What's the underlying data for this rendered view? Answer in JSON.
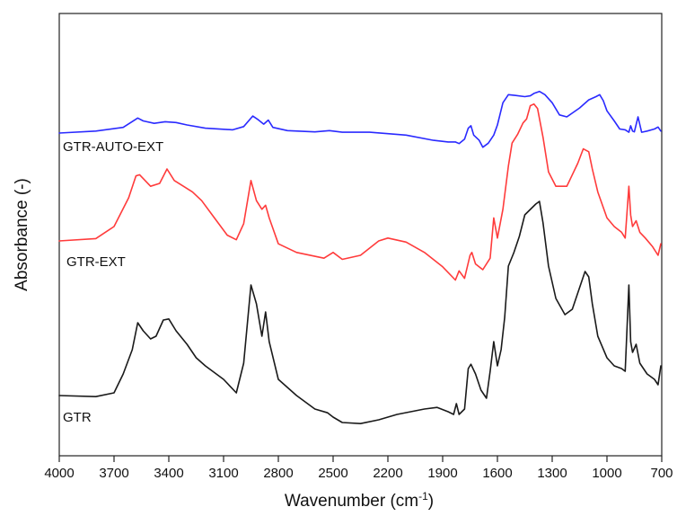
{
  "chart_data": {
    "type": "line",
    "title": "",
    "xlabel": "Wavenumber (cm",
    "xlabel_superscript": "-1",
    "xlabel_suffix": ")",
    "ylabel": "Absorbance (-)",
    "xlim": [
      4000,
      700
    ],
    "x_reversed": true,
    "y_ticks_shown": false,
    "grid": false,
    "legend": "inline labels at left",
    "x_ticks": [
      "4000",
      "3700",
      "3400",
      "3100",
      "2800",
      "2500",
      "2200",
      "1900",
      "1600",
      "1300",
      "1000",
      "700"
    ],
    "series": [
      {
        "name": "GTR-AUTO-EXT",
        "color": "#2a2aff",
        "points": [
          [
            4000,
            0.0
          ],
          [
            3800,
            0.05
          ],
          [
            3650,
            0.14
          ],
          [
            3570,
            0.37
          ],
          [
            3540,
            0.3
          ],
          [
            3480,
            0.24
          ],
          [
            3420,
            0.28
          ],
          [
            3360,
            0.26
          ],
          [
            3300,
            0.2
          ],
          [
            3200,
            0.12
          ],
          [
            3050,
            0.08
          ],
          [
            2990,
            0.16
          ],
          [
            2940,
            0.42
          ],
          [
            2910,
            0.33
          ],
          [
            2880,
            0.22
          ],
          [
            2855,
            0.32
          ],
          [
            2830,
            0.14
          ],
          [
            2750,
            0.06
          ],
          [
            2600,
            0.03
          ],
          [
            2520,
            0.06
          ],
          [
            2450,
            0.02
          ],
          [
            2300,
            0.02
          ],
          [
            2100,
            -0.05
          ],
          [
            1950,
            -0.18
          ],
          [
            1870,
            -0.22
          ],
          [
            1830,
            -0.22
          ],
          [
            1810,
            -0.26
          ],
          [
            1780,
            -0.15
          ],
          [
            1760,
            0.12
          ],
          [
            1745,
            0.18
          ],
          [
            1730,
            -0.05
          ],
          [
            1700,
            -0.18
          ],
          [
            1680,
            -0.35
          ],
          [
            1650,
            -0.25
          ],
          [
            1620,
            -0.05
          ],
          [
            1600,
            0.2
          ],
          [
            1570,
            0.75
          ],
          [
            1540,
            0.95
          ],
          [
            1500,
            0.93
          ],
          [
            1450,
            0.9
          ],
          [
            1420,
            0.92
          ],
          [
            1400,
            0.98
          ],
          [
            1370,
            1.03
          ],
          [
            1340,
            0.95
          ],
          [
            1300,
            0.75
          ],
          [
            1260,
            0.45
          ],
          [
            1220,
            0.4
          ],
          [
            1150,
            0.62
          ],
          [
            1100,
            0.82
          ],
          [
            1060,
            0.9
          ],
          [
            1040,
            0.95
          ],
          [
            1020,
            0.8
          ],
          [
            1000,
            0.55
          ],
          [
            960,
            0.3
          ],
          [
            930,
            0.1
          ],
          [
            900,
            0.08
          ],
          [
            880,
            0.02
          ],
          [
            870,
            0.18
          ],
          [
            860,
            0.05
          ],
          [
            850,
            0.03
          ],
          [
            830,
            0.4
          ],
          [
            810,
            0.02
          ],
          [
            780,
            0.05
          ],
          [
            740,
            0.1
          ],
          [
            720,
            0.15
          ],
          [
            705,
            0.05
          ]
        ]
      },
      {
        "name": "GTR-EXT",
        "color": "#ff3b3b",
        "points": [
          [
            4000,
            0.0
          ],
          [
            3800,
            0.04
          ],
          [
            3700,
            0.25
          ],
          [
            3620,
            0.75
          ],
          [
            3580,
            1.13
          ],
          [
            3560,
            1.15
          ],
          [
            3500,
            0.95
          ],
          [
            3450,
            1.0
          ],
          [
            3410,
            1.25
          ],
          [
            3370,
            1.05
          ],
          [
            3320,
            0.95
          ],
          [
            3270,
            0.85
          ],
          [
            3220,
            0.7
          ],
          [
            3150,
            0.4
          ],
          [
            3080,
            0.1
          ],
          [
            3030,
            0.02
          ],
          [
            2990,
            0.3
          ],
          [
            2950,
            1.05
          ],
          [
            2920,
            0.7
          ],
          [
            2890,
            0.55
          ],
          [
            2870,
            0.62
          ],
          [
            2850,
            0.4
          ],
          [
            2800,
            -0.05
          ],
          [
            2700,
            -0.2
          ],
          [
            2550,
            -0.3
          ],
          [
            2500,
            -0.2
          ],
          [
            2450,
            -0.32
          ],
          [
            2350,
            -0.25
          ],
          [
            2250,
            0.0
          ],
          [
            2200,
            0.05
          ],
          [
            2100,
            -0.02
          ],
          [
            2000,
            -0.2
          ],
          [
            1900,
            -0.45
          ],
          [
            1830,
            -0.68
          ],
          [
            1810,
            -0.52
          ],
          [
            1780,
            -0.65
          ],
          [
            1750,
            -0.25
          ],
          [
            1740,
            -0.2
          ],
          [
            1720,
            -0.4
          ],
          [
            1680,
            -0.5
          ],
          [
            1640,
            -0.3
          ],
          [
            1620,
            0.4
          ],
          [
            1600,
            0.05
          ],
          [
            1570,
            0.55
          ],
          [
            1540,
            1.3
          ],
          [
            1520,
            1.7
          ],
          [
            1490,
            1.85
          ],
          [
            1460,
            2.05
          ],
          [
            1440,
            2.12
          ],
          [
            1420,
            2.35
          ],
          [
            1400,
            2.38
          ],
          [
            1380,
            2.3
          ],
          [
            1350,
            1.8
          ],
          [
            1320,
            1.2
          ],
          [
            1280,
            0.95
          ],
          [
            1220,
            0.95
          ],
          [
            1160,
            1.35
          ],
          [
            1130,
            1.6
          ],
          [
            1100,
            1.55
          ],
          [
            1080,
            1.25
          ],
          [
            1050,
            0.85
          ],
          [
            1000,
            0.4
          ],
          [
            960,
            0.25
          ],
          [
            920,
            0.15
          ],
          [
            900,
            0.05
          ],
          [
            880,
            0.95
          ],
          [
            870,
            0.45
          ],
          [
            860,
            0.25
          ],
          [
            840,
            0.35
          ],
          [
            820,
            0.15
          ],
          [
            790,
            0.05
          ],
          [
            750,
            -0.1
          ],
          [
            720,
            -0.25
          ],
          [
            705,
            -0.05
          ]
        ]
      },
      {
        "name": "GTR",
        "color": "#1a1a1a",
        "points": [
          [
            4000,
            0.0
          ],
          [
            3800,
            -0.02
          ],
          [
            3700,
            0.05
          ],
          [
            3650,
            0.4
          ],
          [
            3600,
            0.85
          ],
          [
            3570,
            1.35
          ],
          [
            3540,
            1.2
          ],
          [
            3500,
            1.05
          ],
          [
            3470,
            1.1
          ],
          [
            3430,
            1.4
          ],
          [
            3400,
            1.42
          ],
          [
            3360,
            1.2
          ],
          [
            3300,
            0.95
          ],
          [
            3250,
            0.7
          ],
          [
            3200,
            0.55
          ],
          [
            3100,
            0.3
          ],
          [
            3030,
            0.05
          ],
          [
            2990,
            0.6
          ],
          [
            2950,
            2.05
          ],
          [
            2920,
            1.7
          ],
          [
            2890,
            1.1
          ],
          [
            2870,
            1.55
          ],
          [
            2850,
            1.0
          ],
          [
            2800,
            0.3
          ],
          [
            2700,
            0.0
          ],
          [
            2600,
            -0.25
          ],
          [
            2530,
            -0.32
          ],
          [
            2500,
            -0.4
          ],
          [
            2450,
            -0.5
          ],
          [
            2350,
            -0.52
          ],
          [
            2250,
            -0.45
          ],
          [
            2150,
            -0.35
          ],
          [
            2000,
            -0.25
          ],
          [
            1930,
            -0.22
          ],
          [
            1870,
            -0.3
          ],
          [
            1840,
            -0.35
          ],
          [
            1825,
            -0.15
          ],
          [
            1810,
            -0.35
          ],
          [
            1780,
            -0.25
          ],
          [
            1760,
            0.5
          ],
          [
            1745,
            0.58
          ],
          [
            1720,
            0.4
          ],
          [
            1690,
            0.1
          ],
          [
            1660,
            -0.05
          ],
          [
            1640,
            0.45
          ],
          [
            1620,
            1.0
          ],
          [
            1600,
            0.55
          ],
          [
            1580,
            0.85
          ],
          [
            1560,
            1.45
          ],
          [
            1540,
            2.4
          ],
          [
            1510,
            2.65
          ],
          [
            1480,
            2.95
          ],
          [
            1450,
            3.35
          ],
          [
            1420,
            3.45
          ],
          [
            1390,
            3.55
          ],
          [
            1370,
            3.6
          ],
          [
            1350,
            3.2
          ],
          [
            1320,
            2.4
          ],
          [
            1280,
            1.8
          ],
          [
            1230,
            1.5
          ],
          [
            1190,
            1.6
          ],
          [
            1150,
            2.0
          ],
          [
            1120,
            2.3
          ],
          [
            1100,
            2.2
          ],
          [
            1080,
            1.7
          ],
          [
            1050,
            1.1
          ],
          [
            1000,
            0.7
          ],
          [
            960,
            0.55
          ],
          [
            920,
            0.5
          ],
          [
            900,
            0.45
          ],
          [
            880,
            2.05
          ],
          [
            870,
            1.0
          ],
          [
            860,
            0.8
          ],
          [
            840,
            0.95
          ],
          [
            820,
            0.6
          ],
          [
            780,
            0.4
          ],
          [
            740,
            0.3
          ],
          [
            720,
            0.2
          ],
          [
            705,
            0.55
          ]
        ]
      }
    ]
  }
}
